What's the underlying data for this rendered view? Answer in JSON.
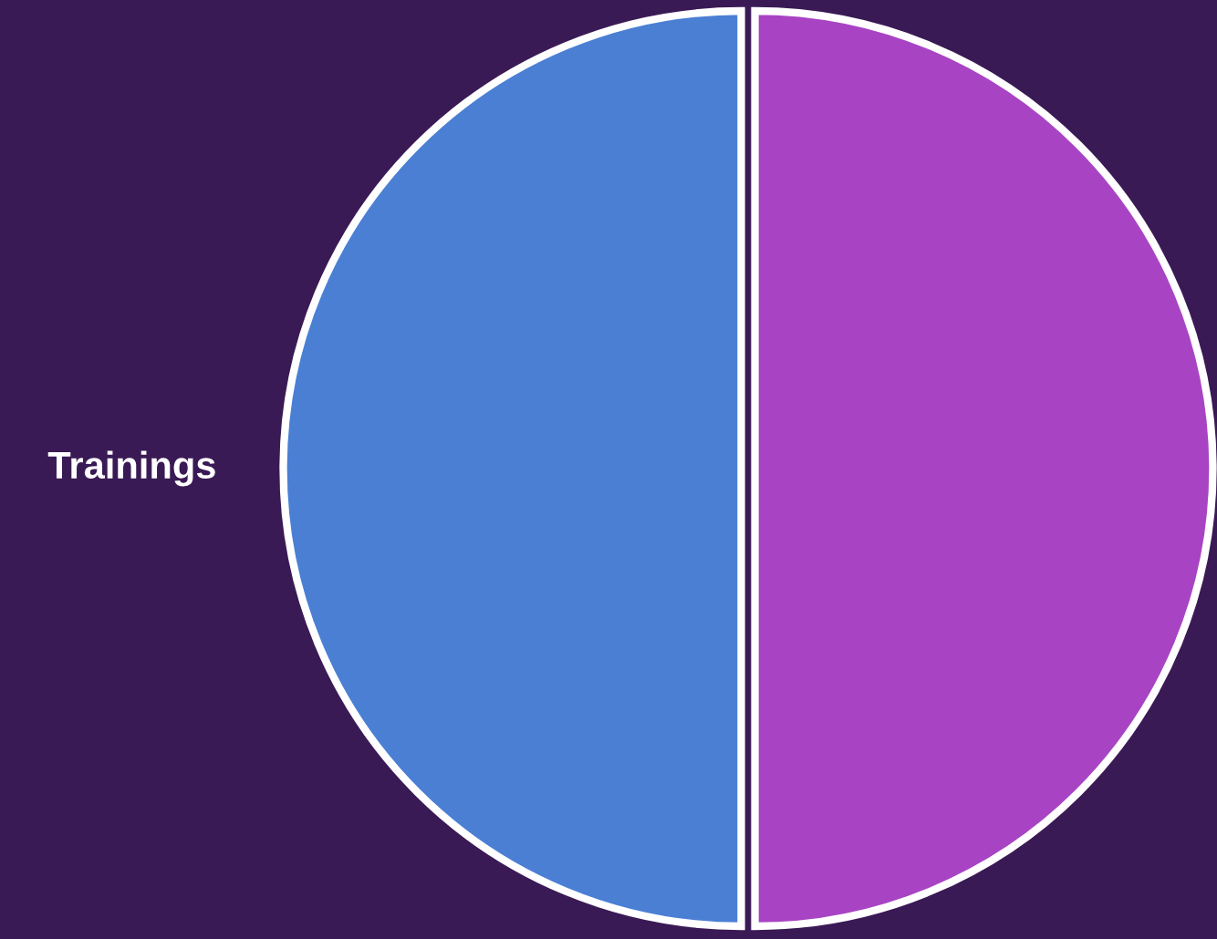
{
  "chart_data": {
    "type": "pie",
    "categories": [
      "Trainings",
      null
    ],
    "values": [
      50,
      50
    ],
    "colors": [
      "#4a7fd4",
      "#a844c4"
    ]
  }
}
